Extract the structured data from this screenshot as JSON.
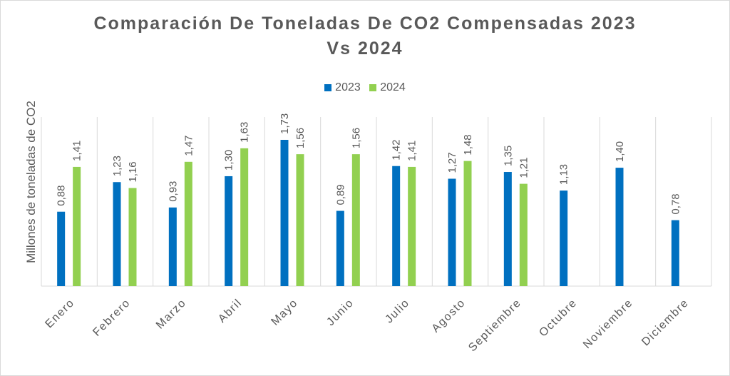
{
  "colors": {
    "s2023": "#0070c0",
    "s2024": "#92d050",
    "grid": "#d9d9d9",
    "text": "#595959"
  },
  "chart_data": {
    "type": "bar",
    "title_line1": "Comparación De Toneladas De CO2 Compensadas 2023",
    "title_line2": "Vs 2024",
    "xlabel": "",
    "ylabel": "Millones de toneladas de CO2",
    "ylim": [
      0,
      2.0
    ],
    "grid": "vertical-category-separators",
    "legend_position": "top",
    "categories": [
      "Enero",
      "Febrero",
      "Marzo",
      "Abril",
      "Mayo",
      "Junio",
      "Julio",
      "Agosto",
      "Septiembre",
      "Octubre",
      "Noviembre",
      "Diciembre"
    ],
    "series": [
      {
        "name": "2023",
        "values": [
          0.88,
          1.23,
          0.93,
          1.3,
          1.73,
          0.89,
          1.42,
          1.27,
          1.35,
          1.13,
          1.4,
          0.78
        ],
        "labels": [
          "0,88",
          "1,23",
          "0,93",
          "1,30",
          "1,73",
          "0,89",
          "1,42",
          "1,27",
          "1,35",
          "1,13",
          "1,40",
          "0,78"
        ]
      },
      {
        "name": "2024",
        "values": [
          1.41,
          1.16,
          1.47,
          1.63,
          1.56,
          1.56,
          1.41,
          1.48,
          1.21,
          null,
          null,
          null
        ],
        "labels": [
          "1,41",
          "1,16",
          "1,47",
          "1,63",
          "1,56",
          "1,56",
          "1,41",
          "1,48",
          "1,21",
          null,
          null,
          null
        ]
      }
    ]
  }
}
